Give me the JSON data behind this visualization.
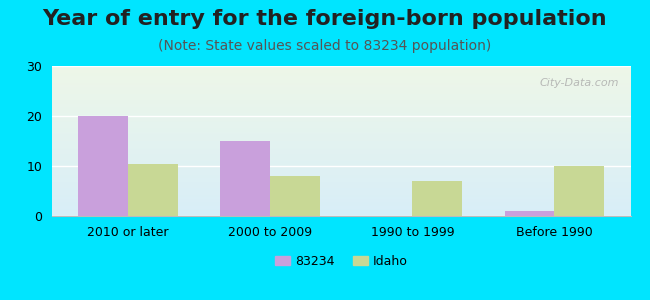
{
  "title": "Year of entry for the foreign-born population",
  "subtitle": "(Note: State values scaled to 83234 population)",
  "categories": [
    "2010 or later",
    "2000 to 2009",
    "1990 to 1999",
    "Before 1990"
  ],
  "series_83234": [
    20,
    15,
    0,
    1
  ],
  "series_idaho": [
    10.5,
    8,
    7,
    10
  ],
  "color_83234": "#c9a0dc",
  "color_idaho": "#c8d895",
  "ylim": [
    0,
    30
  ],
  "yticks": [
    0,
    10,
    20,
    30
  ],
  "bar_width": 0.35,
  "background_outer": "#00e5ff",
  "background_inner_top": "#eef7e8",
  "background_inner_bottom": "#d8eef8",
  "title_fontsize": 16,
  "subtitle_fontsize": 10,
  "legend_label_83234": "83234",
  "legend_label_idaho": "Idaho"
}
